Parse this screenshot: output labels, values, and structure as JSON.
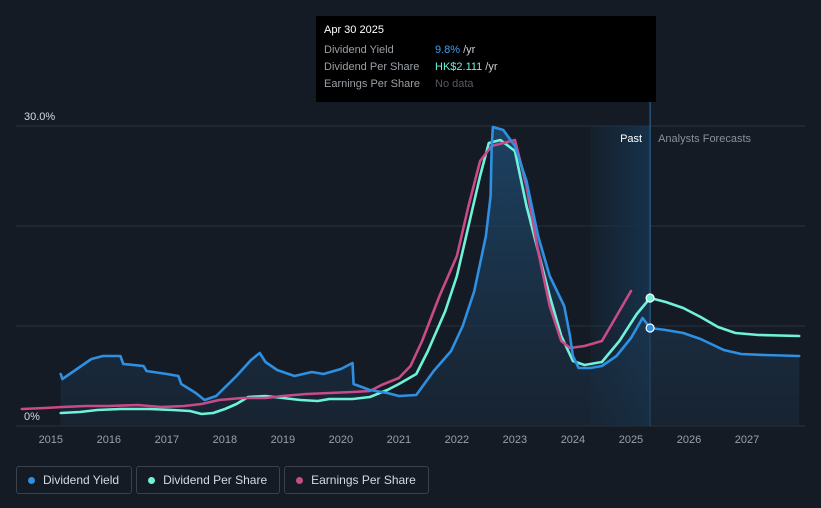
{
  "tooltip": {
    "date": "Apr 30 2025",
    "rows": [
      {
        "label": "Dividend Yield",
        "value": "9.8%",
        "unit": "/yr"
      },
      {
        "label": "Dividend Per Share",
        "value": "HK$2.111",
        "unit": "/yr"
      },
      {
        "label": "Earnings Per Share",
        "value": "No data",
        "unit": ""
      }
    ]
  },
  "colors": {
    "background": "#151b24",
    "dividend_yield": "#2f8fe0",
    "dividend_per_share": "#6ff2d9",
    "earnings_per_share": "#c84b87",
    "grid": "#2a313b",
    "forecast_band": "#16314a"
  },
  "legend": [
    {
      "label": "Dividend Yield",
      "color": "#2f8fe0"
    },
    {
      "label": "Dividend Per Share",
      "color": "#6ff2d9"
    },
    {
      "label": "Earnings Per Share",
      "color": "#c84b87"
    }
  ],
  "chart_data": {
    "type": "line",
    "xlim": [
      2014.4,
      2028.0
    ],
    "ylim": [
      0,
      30
    ],
    "y_ticks": [
      {
        "value": 30,
        "label": "30.0%"
      },
      {
        "value": 0,
        "label": "0%"
      }
    ],
    "x_ticks": [
      2015,
      2016,
      2017,
      2018,
      2019,
      2020,
      2021,
      2022,
      2023,
      2024,
      2025,
      2026,
      2027
    ],
    "past_label": "Past",
    "forecast_label": "Analysts Forecasts",
    "past_shade_start": 2024.3,
    "forecast_start": 2025.33,
    "grid": true,
    "series": [
      {
        "name": "Dividend Yield",
        "key": "yield",
        "area": true,
        "points": [
          [
            2015.17,
            5.2
          ],
          [
            2015.2,
            4.7
          ],
          [
            2015.3,
            5.1
          ],
          [
            2015.5,
            5.9
          ],
          [
            2015.7,
            6.7
          ],
          [
            2015.9,
            7.0
          ],
          [
            2016.2,
            7.0
          ],
          [
            2016.25,
            6.2
          ],
          [
            2016.6,
            6.0
          ],
          [
            2016.65,
            5.5
          ],
          [
            2017.0,
            5.2
          ],
          [
            2017.2,
            5.0
          ],
          [
            2017.25,
            4.2
          ],
          [
            2017.5,
            3.3
          ],
          [
            2017.65,
            2.6
          ],
          [
            2017.85,
            3.0
          ],
          [
            2018.2,
            5.0
          ],
          [
            2018.45,
            6.6
          ],
          [
            2018.6,
            7.3
          ],
          [
            2018.7,
            6.4
          ],
          [
            2018.9,
            5.6
          ],
          [
            2019.2,
            5.0
          ],
          [
            2019.35,
            5.2
          ],
          [
            2019.5,
            5.4
          ],
          [
            2019.7,
            5.2
          ],
          [
            2020.0,
            5.7
          ],
          [
            2020.2,
            6.3
          ],
          [
            2020.22,
            4.2
          ],
          [
            2020.5,
            3.6
          ],
          [
            2020.8,
            3.3
          ],
          [
            2021.0,
            3.0
          ],
          [
            2021.3,
            3.1
          ],
          [
            2021.6,
            5.5
          ],
          [
            2021.9,
            7.5
          ],
          [
            2022.1,
            10.0
          ],
          [
            2022.3,
            13.5
          ],
          [
            2022.5,
            19.0
          ],
          [
            2022.58,
            23.0
          ],
          [
            2022.6,
            28.0
          ],
          [
            2022.62,
            29.9
          ],
          [
            2022.8,
            29.6
          ],
          [
            2023.0,
            28.0
          ],
          [
            2023.2,
            24.5
          ],
          [
            2023.4,
            19.0
          ],
          [
            2023.6,
            15.0
          ],
          [
            2023.85,
            12.0
          ],
          [
            2023.95,
            9.0
          ],
          [
            2024.0,
            7.0
          ],
          [
            2024.1,
            5.8
          ],
          [
            2024.3,
            5.8
          ],
          [
            2024.5,
            6.0
          ],
          [
            2024.75,
            7.0
          ],
          [
            2025.0,
            8.8
          ],
          [
            2025.2,
            10.8
          ],
          [
            2025.33,
            9.8
          ],
          [
            2025.6,
            9.6
          ],
          [
            2025.9,
            9.3
          ],
          [
            2026.2,
            8.7
          ],
          [
            2026.6,
            7.6
          ],
          [
            2026.9,
            7.2
          ],
          [
            2027.3,
            7.1
          ],
          [
            2027.9,
            7.0
          ]
        ]
      },
      {
        "name": "Dividend Per Share",
        "key": "dps",
        "area": false,
        "points": [
          [
            2015.17,
            1.3
          ],
          [
            2015.5,
            1.4
          ],
          [
            2015.8,
            1.6
          ],
          [
            2016.2,
            1.7
          ],
          [
            2016.7,
            1.7
          ],
          [
            2017.1,
            1.6
          ],
          [
            2017.4,
            1.5
          ],
          [
            2017.6,
            1.2
          ],
          [
            2017.8,
            1.3
          ],
          [
            2018.0,
            1.7
          ],
          [
            2018.2,
            2.2
          ],
          [
            2018.4,
            2.9
          ],
          [
            2018.7,
            3.0
          ],
          [
            2019.0,
            2.8
          ],
          [
            2019.3,
            2.6
          ],
          [
            2019.6,
            2.5
          ],
          [
            2019.8,
            2.7
          ],
          [
            2020.2,
            2.7
          ],
          [
            2020.5,
            2.9
          ],
          [
            2020.8,
            3.6
          ],
          [
            2021.0,
            4.2
          ],
          [
            2021.3,
            5.2
          ],
          [
            2021.5,
            7.5
          ],
          [
            2021.8,
            11.5
          ],
          [
            2022.0,
            15.0
          ],
          [
            2022.2,
            20.0
          ],
          [
            2022.4,
            25.0
          ],
          [
            2022.55,
            28.3
          ],
          [
            2022.75,
            28.6
          ],
          [
            2023.0,
            27.5
          ],
          [
            2023.2,
            22.0
          ],
          [
            2023.4,
            17.5
          ],
          [
            2023.6,
            13.0
          ],
          [
            2023.8,
            9.0
          ],
          [
            2024.0,
            6.5
          ],
          [
            2024.2,
            6.1
          ],
          [
            2024.5,
            6.4
          ],
          [
            2024.8,
            8.5
          ],
          [
            2025.1,
            11.2
          ],
          [
            2025.33,
            12.8
          ],
          [
            2025.6,
            12.4
          ],
          [
            2025.9,
            11.8
          ],
          [
            2026.2,
            10.9
          ],
          [
            2026.5,
            9.9
          ],
          [
            2026.8,
            9.3
          ],
          [
            2027.2,
            9.1
          ],
          [
            2027.9,
            9.0
          ]
        ]
      },
      {
        "name": "Earnings Per Share",
        "key": "eps",
        "area": false,
        "points": [
          [
            2014.5,
            1.7
          ],
          [
            2014.9,
            1.8
          ],
          [
            2015.2,
            1.9
          ],
          [
            2015.6,
            2.0
          ],
          [
            2016.0,
            2.0
          ],
          [
            2016.5,
            2.1
          ],
          [
            2016.9,
            1.9
          ],
          [
            2017.3,
            2.0
          ],
          [
            2017.6,
            2.2
          ],
          [
            2017.9,
            2.6
          ],
          [
            2018.3,
            2.8
          ],
          [
            2018.7,
            2.8
          ],
          [
            2019.0,
            3.0
          ],
          [
            2019.4,
            3.2
          ],
          [
            2019.8,
            3.3
          ],
          [
            2020.2,
            3.4
          ],
          [
            2020.5,
            3.5
          ],
          [
            2020.7,
            4.1
          ],
          [
            2021.0,
            4.8
          ],
          [
            2021.2,
            6.0
          ],
          [
            2021.4,
            8.5
          ],
          [
            2021.7,
            13.0
          ],
          [
            2022.0,
            17.0
          ],
          [
            2022.2,
            22.0
          ],
          [
            2022.4,
            26.5
          ],
          [
            2022.6,
            28.0
          ],
          [
            2022.8,
            28.3
          ],
          [
            2023.0,
            28.6
          ],
          [
            2023.2,
            24.0
          ],
          [
            2023.4,
            17.5
          ],
          [
            2023.6,
            12.0
          ],
          [
            2023.8,
            8.5
          ],
          [
            2023.95,
            7.8
          ],
          [
            2024.2,
            8.0
          ],
          [
            2024.5,
            8.5
          ],
          [
            2024.7,
            10.5
          ],
          [
            2024.9,
            12.5
          ],
          [
            2025.0,
            13.5
          ]
        ]
      }
    ]
  }
}
